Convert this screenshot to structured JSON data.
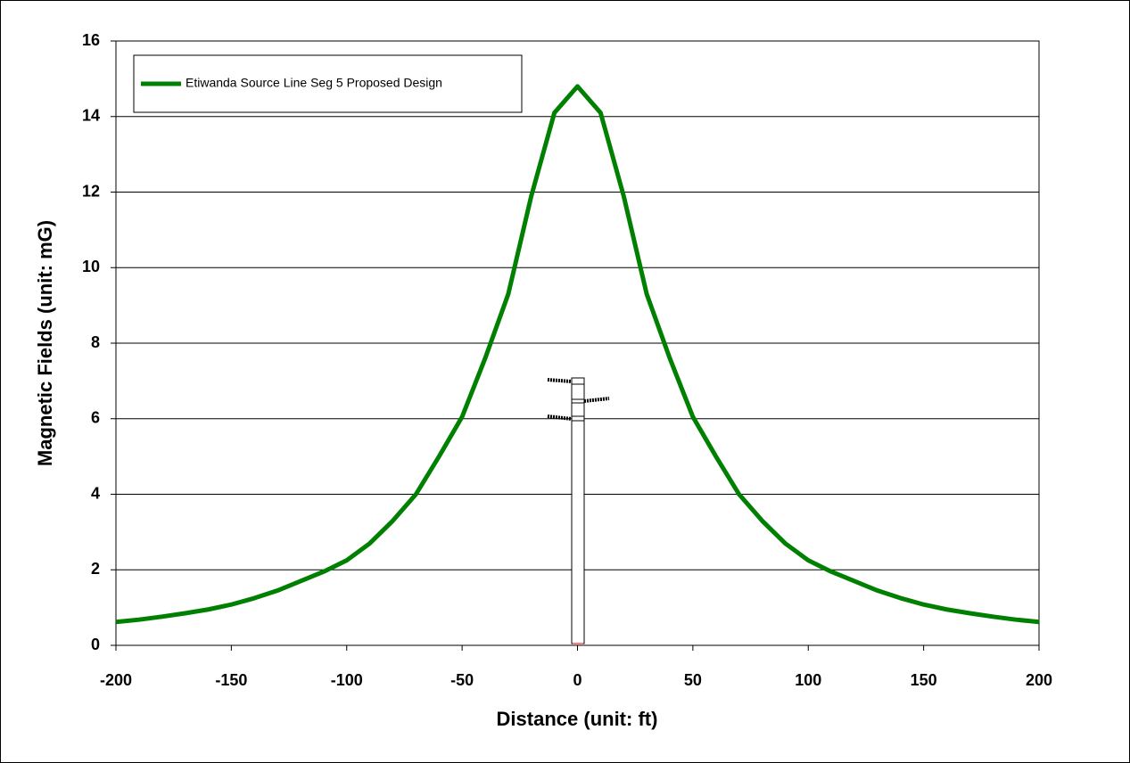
{
  "chart_data": {
    "type": "line",
    "xlabel": "Distance (unit: ft)",
    "ylabel": "Magnetic Fields (unit: mG)",
    "x": [
      -200,
      -190,
      -180,
      -170,
      -160,
      -150,
      -140,
      -130,
      -120,
      -110,
      -100,
      -90,
      -80,
      -70,
      -60,
      -50,
      -40,
      -30,
      -20,
      -10,
      0,
      10,
      20,
      30,
      40,
      50,
      60,
      70,
      80,
      90,
      100,
      110,
      120,
      130,
      140,
      150,
      160,
      170,
      180,
      190,
      200
    ],
    "series": [
      {
        "name": "Etiwanda Source Line Seg 5 Proposed Design",
        "color": "#008000",
        "values": [
          0.62,
          0.68,
          0.76,
          0.85,
          0.95,
          1.08,
          1.25,
          1.45,
          1.7,
          1.95,
          2.25,
          2.7,
          3.3,
          4.0,
          5.0,
          6.05,
          7.6,
          9.3,
          11.9,
          14.1,
          14.8,
          14.1,
          11.9,
          9.3,
          7.6,
          6.05,
          5.0,
          4.0,
          3.3,
          2.7,
          2.25,
          1.95,
          1.7,
          1.45,
          1.25,
          1.08,
          0.95,
          0.85,
          0.76,
          0.68,
          0.62
        ]
      }
    ],
    "xlim": [
      -200,
      200
    ],
    "xticks": [
      -200,
      -150,
      -100,
      -50,
      0,
      50,
      100,
      150,
      200
    ],
    "ylim": [
      0,
      16
    ],
    "yticks": [
      0,
      2,
      4,
      6,
      8,
      10,
      12,
      14,
      16
    ],
    "grid": true,
    "legend": "upper left"
  }
}
